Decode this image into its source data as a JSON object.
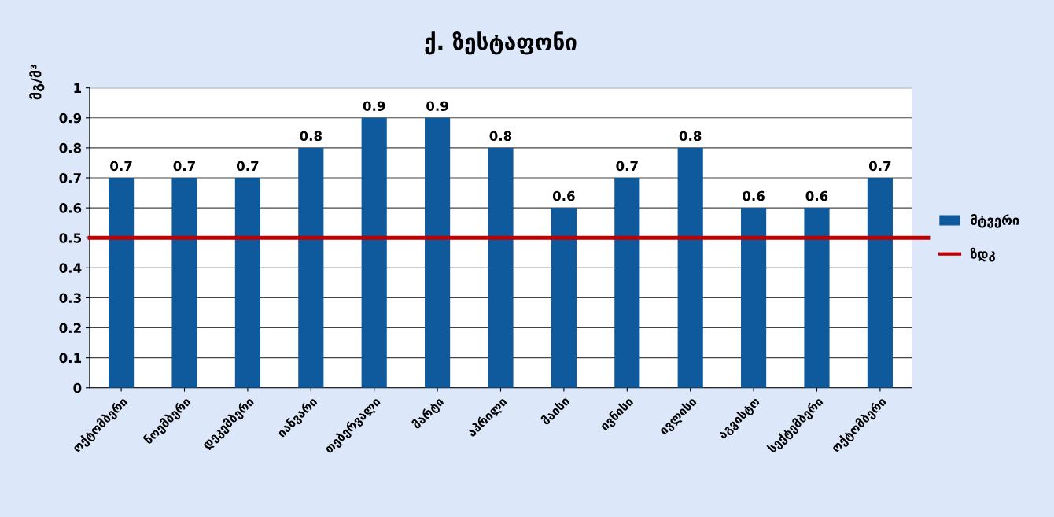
{
  "chart_data": {
    "type": "bar",
    "title": "ქ. ზესტაფონი",
    "ylabel": "მგ/მ³",
    "categories": [
      "ოქტომბერი",
      "ნოემბერი",
      "დეკემბერი",
      "იანვარი",
      "თებერვალი",
      "მარტი",
      "აპრილი",
      "მაისი",
      "ივნისი",
      "ივლისი",
      "აგვისტო",
      "სექტემბერი",
      "ოქტომბერი"
    ],
    "series": [
      {
        "name": "მტვერი",
        "color": "#0f5a9c",
        "values": [
          0.7,
          0.7,
          0.7,
          0.8,
          0.9,
          0.9,
          0.8,
          0.6,
          0.7,
          0.8,
          0.6,
          0.6,
          0.7
        ]
      }
    ],
    "ref_lines": [
      {
        "axis": "y",
        "value": 0.5,
        "label": "ზდკ",
        "color": "#c00000"
      }
    ],
    "ylim": [
      0,
      1
    ],
    "yticks": [
      0,
      0.1,
      0.2,
      0.3,
      0.4,
      0.5,
      0.6,
      0.7,
      0.8,
      0.9,
      1
    ],
    "grid": "y",
    "legend": "right",
    "data_labels": true
  }
}
